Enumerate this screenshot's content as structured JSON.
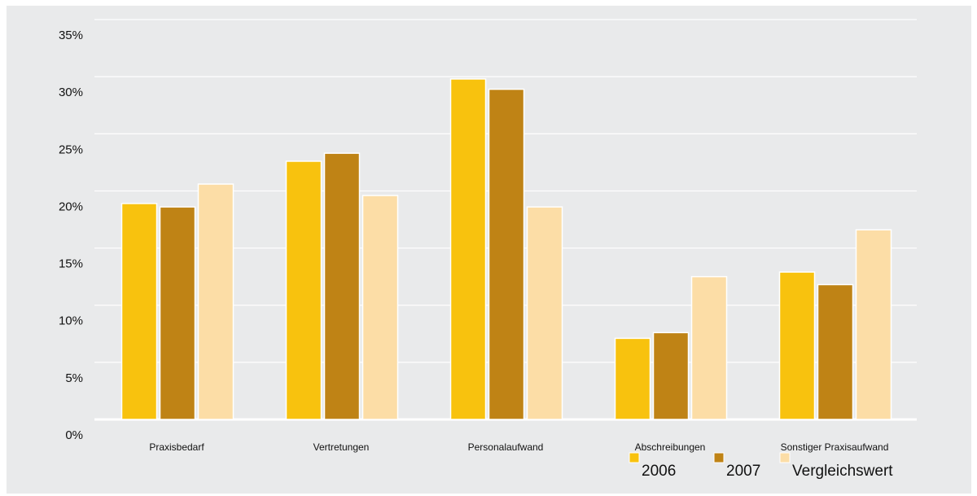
{
  "chart_data": {
    "type": "bar",
    "categories": [
      "Praxisbedarf",
      "Vertretungen",
      "Personalaufwand",
      "Abschreibungen",
      "Sonstiger Praxisaufwand"
    ],
    "series": [
      {
        "name": "2006",
        "color": "#f8c20e",
        "values": [
          18.9,
          22.6,
          29.8,
          7.1,
          12.9
        ]
      },
      {
        "name": "2007",
        "color": "#bf8315",
        "values": [
          18.6,
          23.3,
          28.9,
          7.6,
          11.8
        ]
      },
      {
        "name": "Vergleichswert",
        "color": "#fcdda6",
        "values": [
          20.6,
          19.6,
          18.6,
          12.5,
          16.6
        ]
      }
    ],
    "yticks": [
      "0%",
      "5%",
      "10%",
      "15%",
      "20%",
      "25%",
      "30%",
      "35%"
    ],
    "ylim": [
      0,
      35
    ],
    "grid": true,
    "legend_position": "bottom-right",
    "title": "",
    "xlabel": "",
    "ylabel": ""
  }
}
